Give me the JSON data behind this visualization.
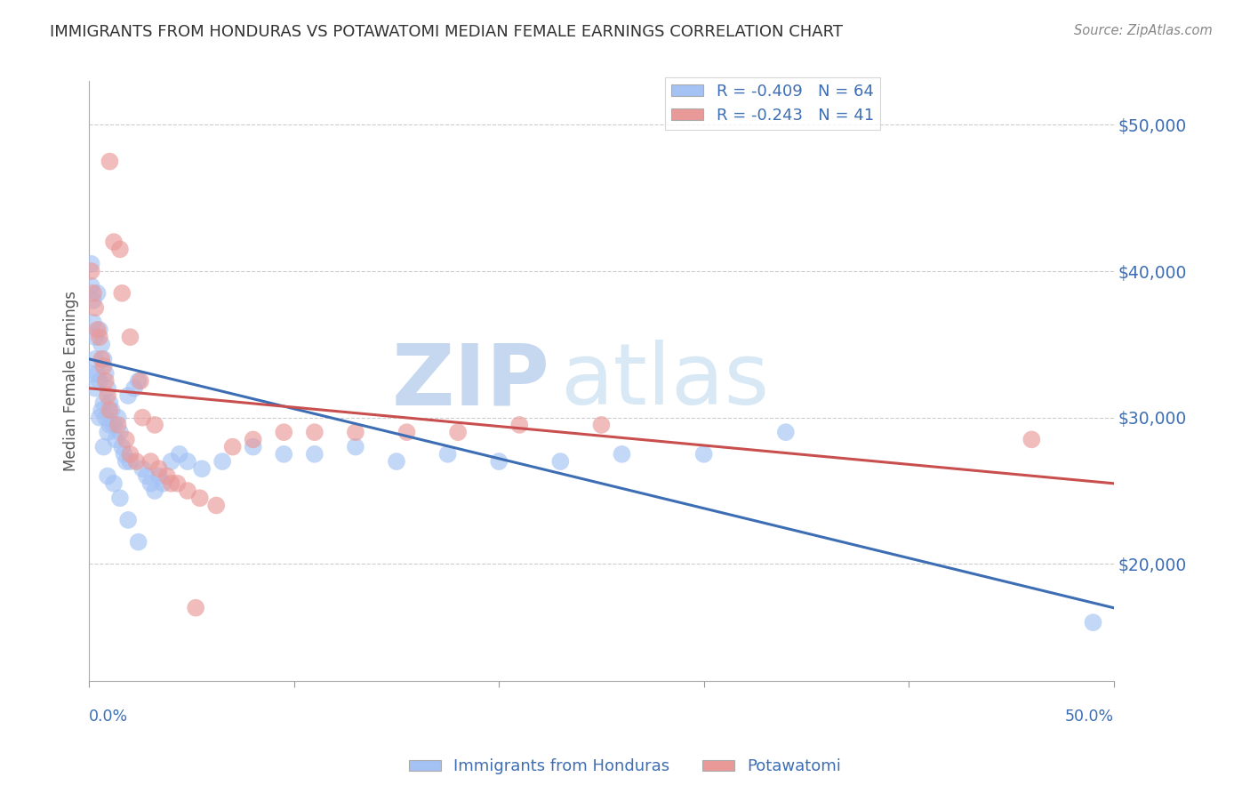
{
  "title": "IMMIGRANTS FROM HONDURAS VS POTAWATOMI MEDIAN FEMALE EARNINGS CORRELATION CHART",
  "source": "Source: ZipAtlas.com",
  "ylabel": "Median Female Earnings",
  "xlim": [
    0.0,
    0.5
  ],
  "ylim": [
    12000,
    53000
  ],
  "legend_blue_label": "R = -0.409   N = 64",
  "legend_pink_label": "R = -0.243   N = 41",
  "blue_color": "#a4c2f4",
  "pink_color": "#ea9999",
  "blue_line_color": "#3d6eb4",
  "pink_line_color": "#c94f4f",
  "watermark_zip": "ZIP",
  "watermark_atlas": "atlas",
  "blue_scatter_x": [
    0.001,
    0.001,
    0.002,
    0.002,
    0.003,
    0.003,
    0.004,
    0.004,
    0.005,
    0.005,
    0.006,
    0.006,
    0.007,
    0.007,
    0.008,
    0.008,
    0.009,
    0.009,
    0.01,
    0.01,
    0.011,
    0.012,
    0.013,
    0.014,
    0.015,
    0.016,
    0.017,
    0.018,
    0.019,
    0.02,
    0.022,
    0.024,
    0.026,
    0.028,
    0.03,
    0.032,
    0.034,
    0.036,
    0.04,
    0.044,
    0.048,
    0.055,
    0.065,
    0.08,
    0.095,
    0.11,
    0.13,
    0.15,
    0.175,
    0.2,
    0.23,
    0.26,
    0.3,
    0.34,
    0.001,
    0.003,
    0.005,
    0.007,
    0.009,
    0.012,
    0.015,
    0.019,
    0.024,
    0.49
  ],
  "blue_scatter_y": [
    40500,
    39000,
    38000,
    36500,
    35500,
    34000,
    38500,
    33000,
    36000,
    32500,
    35000,
    30500,
    34000,
    31000,
    33000,
    30000,
    32000,
    29000,
    31000,
    29500,
    30500,
    29500,
    28500,
    30000,
    29000,
    28000,
    27500,
    27000,
    31500,
    27000,
    32000,
    32500,
    26500,
    26000,
    25500,
    25000,
    26000,
    25500,
    27000,
    27500,
    27000,
    26500,
    27000,
    28000,
    27500,
    27500,
    28000,
    27000,
    27500,
    27000,
    27000,
    27500,
    27500,
    29000,
    33000,
    32000,
    30000,
    28000,
    26000,
    25500,
    24500,
    23000,
    21500,
    16000
  ],
  "pink_scatter_x": [
    0.001,
    0.002,
    0.003,
    0.004,
    0.005,
    0.006,
    0.007,
    0.008,
    0.009,
    0.01,
    0.012,
    0.014,
    0.016,
    0.018,
    0.02,
    0.023,
    0.026,
    0.03,
    0.034,
    0.038,
    0.043,
    0.048,
    0.054,
    0.062,
    0.07,
    0.08,
    0.095,
    0.11,
    0.13,
    0.155,
    0.18,
    0.21,
    0.25,
    0.01,
    0.015,
    0.02,
    0.025,
    0.032,
    0.04,
    0.052,
    0.46
  ],
  "pink_scatter_y": [
    40000,
    38500,
    37500,
    36000,
    35500,
    34000,
    33500,
    32500,
    31500,
    30500,
    42000,
    29500,
    38500,
    28500,
    27500,
    27000,
    30000,
    27000,
    26500,
    26000,
    25500,
    25000,
    24500,
    24000,
    28000,
    28500,
    29000,
    29000,
    29000,
    29000,
    29000,
    29500,
    29500,
    47500,
    41500,
    35500,
    32500,
    29500,
    25500,
    17000,
    28500
  ],
  "blue_line_x0": 0.0,
  "blue_line_y0": 34000,
  "blue_line_x1": 0.5,
  "blue_line_y1": 17000,
  "pink_line_x0": 0.0,
  "pink_line_y0": 32000,
  "pink_line_x1": 0.5,
  "pink_line_y1": 25500,
  "yticks": [
    20000,
    30000,
    40000,
    50000
  ],
  "ytick_labels": [
    "$20,000",
    "$30,000",
    "$40,000",
    "$50,000"
  ],
  "xtick_labels_pos": [
    0.0,
    0.5
  ],
  "xtick_labels": [
    "0.0%",
    "50.0%"
  ],
  "legend_label_blue": "Immigrants from Honduras",
  "legend_label_pink": "Potawatomi"
}
